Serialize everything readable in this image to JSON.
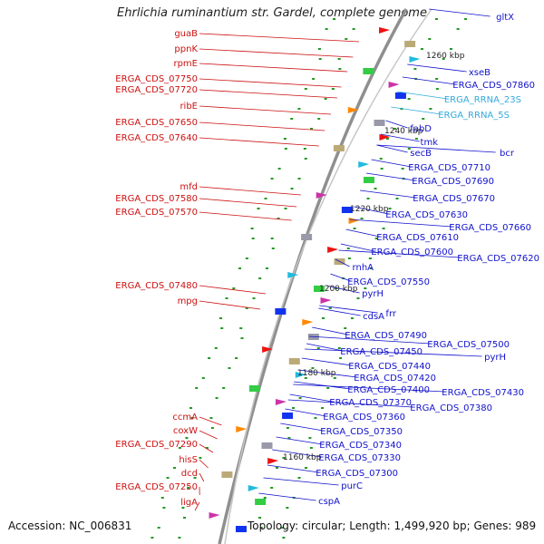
{
  "title": "Ehrlichia ruminantium str. Gardel, complete genome",
  "accession_label": "Accession: NC_006831",
  "topology_label": "Topology: circular; Length: 1,499,920 bp; Genes: 989",
  "colors": {
    "plus_strand_label": "#cc1111",
    "minus_strand_label": "#1111cc",
    "rrna_label": "#33aadd",
    "backbone": "#9a9a9a",
    "gc_dot": "#229922"
  },
  "kbp_ticks": [
    "1260 kbp",
    "1240 kbp",
    "1220 kbp",
    "1200 kbp",
    "1180 kbp",
    "1160 kbp"
  ],
  "left_labels": [
    "guaB",
    "ppnK",
    "rpmE",
    "ERGA_CDS_07750",
    "ERGA_CDS_07720",
    "ribE",
    "ERGA_CDS_07650",
    "ERGA_CDS_07640",
    "mfd",
    "ERGA_CDS_07580",
    "ERGA_CDS_07570",
    "ERGA_CDS_07480",
    "mpg",
    "ccmA",
    "coxW",
    "ERGA_CDS_07290",
    "hisS",
    "dcd",
    "ERGA_CDS_07250",
    "ligA"
  ],
  "right_labels": [
    "gltX",
    "xseB",
    "ERGA_CDS_07860",
    "ERGA_RRNA_23S",
    "ERGA_RRNA_5S",
    "fabD",
    "tmk",
    "secB",
    "bcr",
    "ERGA_CDS_07710",
    "ERGA_CDS_07690",
    "ERGA_CDS_07670",
    "ERGA_CDS_07630",
    "ERGA_CDS_07660",
    "ERGA_CDS_07610",
    "ERGA_CDS_07600",
    "ERGA_CDS_07620",
    "rnhA",
    "ERGA_CDS_07550",
    "pyrH",
    "frr",
    "cdsA",
    "ERGA_CDS_07490",
    "ERGA_CDS_07500",
    "ERGA_CDS_07450",
    "pyrH",
    "ERGA_CDS_07440",
    "ERGA_CDS_07420",
    "ERGA_CDS_07400",
    "ERGA_CDS_07430",
    "ERGA_CDS_07370",
    "ERGA_CDS_07380",
    "ERGA_CDS_07360",
    "ERGA_CDS_07350",
    "ERGA_CDS_07340",
    "ERGA_CDS_07330",
    "ERGA_CDS_07300",
    "purC",
    "cspA"
  ]
}
